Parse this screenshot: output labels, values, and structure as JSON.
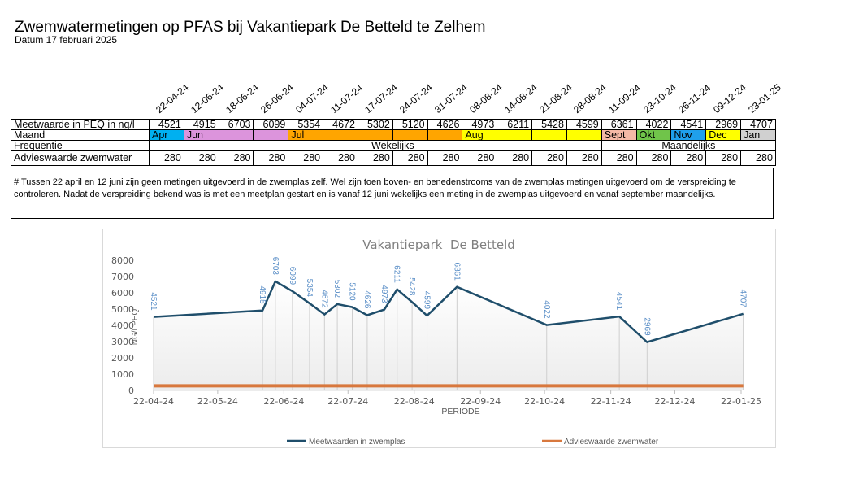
{
  "header": {
    "title": "Zwemwatermetingen op PFAS bij Vakantiepark De Betteld te Zelhem",
    "subtitle": "Datum 17 februari 2025"
  },
  "table": {
    "dates": [
      "22-04-24",
      "12-06-24",
      "18-06-24",
      "26-06-24",
      "04-07-24",
      "11-07-24",
      "17-07-24",
      "24-07-24",
      "31-07-24",
      "08-08-24",
      "14-08-24",
      "21-08-24",
      "28-08-24",
      "11-09-24",
      "23-10-24",
      "26-11-24",
      "09-12-24",
      "23-01-25"
    ],
    "row_labels": {
      "measure": "Meetwaarde in PEQ in ng/l",
      "month": "Maand",
      "frequency": "Frequentie",
      "advice": "Advieswaarde zwemwater"
    },
    "measures": [
      "4521",
      "4915",
      "6703",
      "6099",
      "5354",
      "4672",
      "5302",
      "5120",
      "4626",
      "4973",
      "6211",
      "5428",
      "4599",
      "6361",
      "4022",
      "4541",
      "2969",
      "4707"
    ],
    "months": [
      {
        "label": "Apr",
        "color": "#00b0f0"
      },
      {
        "label": "Jun",
        "color": "#dc94dc"
      },
      {
        "label": "",
        "color": "#dc94dc"
      },
      {
        "label": "",
        "color": "#dc94dc"
      },
      {
        "label": "Jul",
        "color": "#ffa500"
      },
      {
        "label": "",
        "color": "#ffa500"
      },
      {
        "label": "",
        "color": "#ffa500"
      },
      {
        "label": "",
        "color": "#ffa500"
      },
      {
        "label": "",
        "color": "#ffa500"
      },
      {
        "label": "Aug",
        "color": "#ffff00"
      },
      {
        "label": "",
        "color": "#ffff00"
      },
      {
        "label": "",
        "color": "#ffff00"
      },
      {
        "label": "",
        "color": "#ffff00"
      },
      {
        "label": "Sept",
        "color": "#f4b9a6"
      },
      {
        "label": "Okt",
        "color": "#70c44a"
      },
      {
        "label": "Nov",
        "color": "#1fa0ec"
      },
      {
        "label": "Dec",
        "color": "#ffff00"
      },
      {
        "label": "Jan",
        "color": "#d0d0d0"
      }
    ],
    "frequency_weekly": "Wekelijks",
    "frequency_monthly": "Maandelijks",
    "advice": [
      "280",
      "280",
      "280",
      "280",
      "280",
      "280",
      "280",
      "280",
      "280",
      "280",
      "280",
      "280",
      "280",
      "280",
      "280",
      "280",
      "280",
      "280"
    ],
    "note": "# Tussen 22 april en 12 juni zijn geen metingen uitgevoerd in de zwemplas zelf. Wel zijn toen boven- en benedenstrooms van de zwemplas metingen uitgevoerd om de verspreiding te controleren. Nadat de verspreiding bekend was is met een meetplan gestart en is vanaf 12 juni wekelijks een meting in de zwemplas uitgevoerd en vanaf september maandelijks."
  },
  "chart_data": {
    "type": "line",
    "title": "Vakantiepark  De Betteld",
    "xlabel": "PERIODE",
    "ylabel": "NG/LPEQ",
    "ylim": [
      0,
      8000
    ],
    "yticks": [
      "0",
      "1000",
      "2000",
      "3000",
      "4000",
      "5000",
      "6000",
      "7000",
      "8000"
    ],
    "xlim": [
      "22-04-24",
      "22-01-25"
    ],
    "xticks": [
      "22-04-24",
      "22-05-24",
      "22-06-24",
      "22-07-24",
      "22-08-24",
      "22-09-24",
      "22-10-24",
      "22-11-24",
      "22-12-24",
      "22-01-25"
    ],
    "grid": false,
    "legend_position": "bottom",
    "x": [
      "22-04-24",
      "12-06-24",
      "18-06-24",
      "26-06-24",
      "04-07-24",
      "11-07-24",
      "17-07-24",
      "24-07-24",
      "31-07-24",
      "08-08-24",
      "14-08-24",
      "21-08-24",
      "28-08-24",
      "11-09-24",
      "23-10-24",
      "26-11-24",
      "09-12-24",
      "23-01-25"
    ],
    "series": [
      {
        "name": "Meetwaarden in zwemplas",
        "color": "#1f4e6b",
        "values": [
          4521,
          4915,
          6703,
          6099,
          5354,
          4672,
          5302,
          5120,
          4626,
          4973,
          6211,
          5428,
          4599,
          6361,
          4022,
          4541,
          2969,
          4707
        ],
        "data_labels": [
          "4521",
          "4915",
          "6703",
          "6099",
          "5354",
          "4672",
          "5302",
          "5120",
          "4626",
          "4973",
          "6211",
          "5428",
          "4599",
          "6361",
          "4022",
          "4541",
          "2969",
          "4707"
        ]
      },
      {
        "name": "Advieswaarde zwemwater",
        "color": "#d8783e",
        "values": [
          280,
          280,
          280,
          280,
          280,
          280,
          280,
          280,
          280,
          280,
          280,
          280,
          280,
          280,
          280,
          280,
          280,
          280
        ]
      }
    ],
    "label_color": "#5b8fc7"
  }
}
